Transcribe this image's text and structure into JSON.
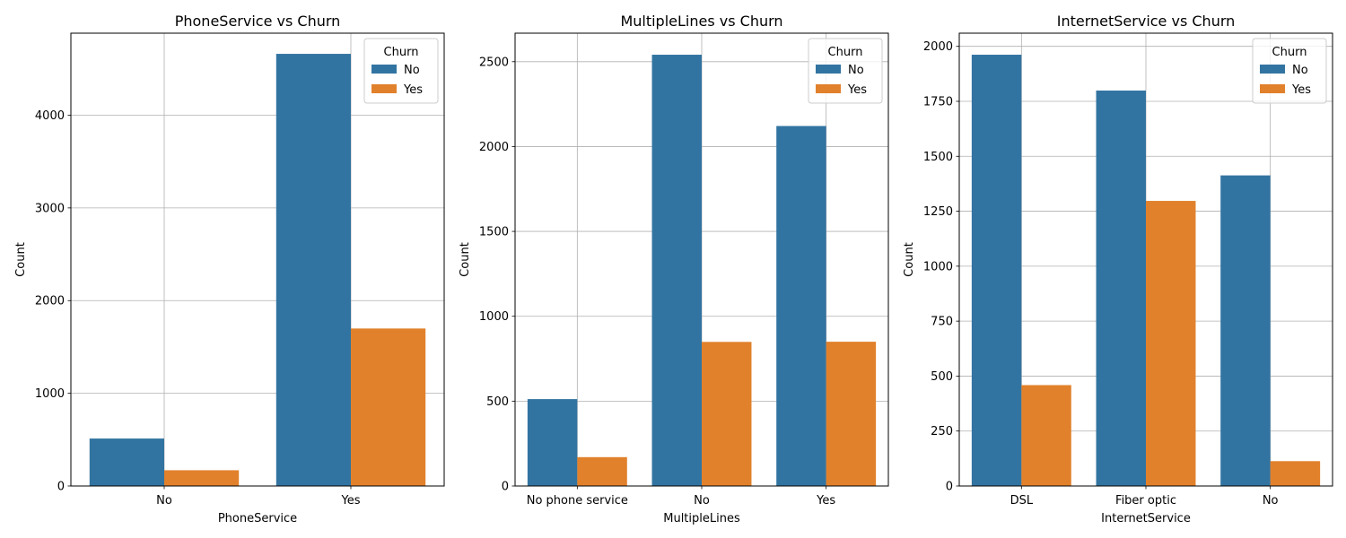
{
  "chart_data": [
    {
      "type": "bar",
      "title": "PhoneService vs Churn",
      "xlabel": "PhoneService",
      "ylabel": "Count",
      "categories": [
        "No",
        "Yes"
      ],
      "series": [
        {
          "name": "No",
          "color": "#3274a1",
          "values": [
            512,
            4662
          ]
        },
        {
          "name": "Yes",
          "color": "#e1812c",
          "values": [
            170,
            1699
          ]
        }
      ],
      "ylim": [
        0,
        4885
      ],
      "yticks": [
        0,
        1000,
        2000,
        3000,
        4000
      ],
      "legend": {
        "title": "Churn",
        "placement": "top-right"
      },
      "grid": true
    },
    {
      "type": "bar",
      "title": "MultipleLines vs Churn",
      "xlabel": "MultipleLines",
      "ylabel": "Count",
      "categories": [
        "No phone service",
        "No",
        "Yes"
      ],
      "series": [
        {
          "name": "No",
          "color": "#3274a1",
          "values": [
            512,
            2541,
            2121
          ]
        },
        {
          "name": "Yes",
          "color": "#e1812c",
          "values": [
            170,
            849,
            850
          ]
        }
      ],
      "ylim": [
        0,
        2668
      ],
      "yticks": [
        0,
        500,
        1000,
        1500,
        2000,
        2500
      ],
      "legend": {
        "title": "Churn",
        "placement": "top-right"
      },
      "grid": true
    },
    {
      "type": "bar",
      "title": "InternetService vs Churn",
      "xlabel": "InternetService",
      "ylabel": "Count",
      "categories": [
        "DSL",
        "Fiber optic",
        "No"
      ],
      "series": [
        {
          "name": "No",
          "color": "#3274a1",
          "values": [
            1962,
            1799,
            1413
          ]
        },
        {
          "name": "Yes",
          "color": "#e1812c",
          "values": [
            459,
            1297,
            113
          ]
        }
      ],
      "ylim": [
        0,
        2060
      ],
      "yticks": [
        0,
        250,
        500,
        750,
        1000,
        1250,
        1500,
        1750,
        2000
      ],
      "legend": {
        "title": "Churn",
        "placement": "top-right"
      },
      "grid": true
    }
  ]
}
